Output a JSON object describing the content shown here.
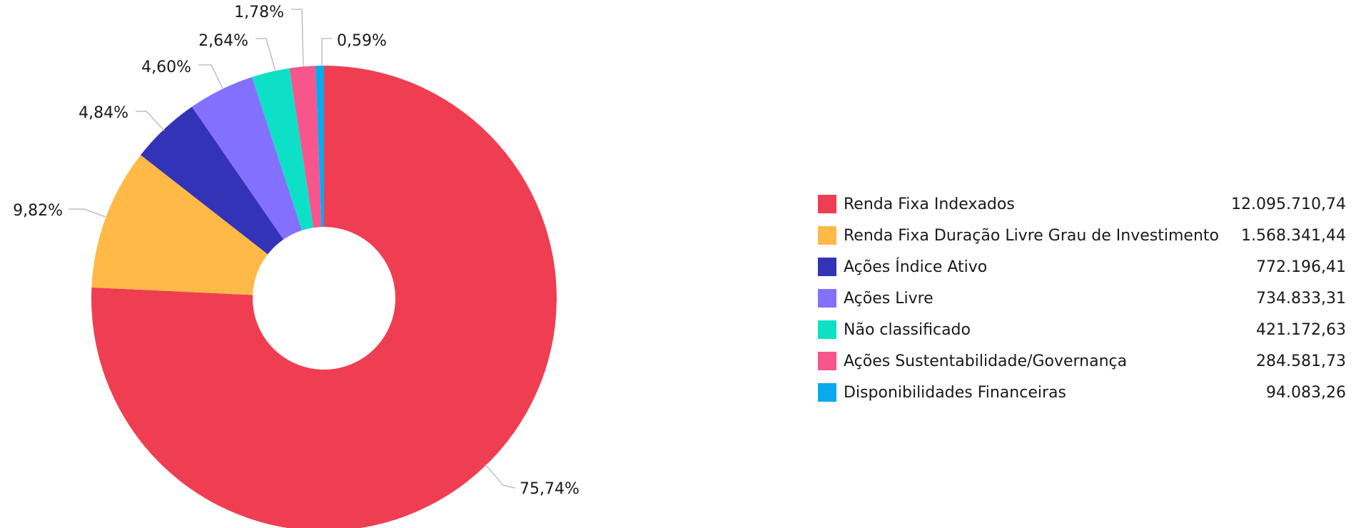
{
  "chart_data": {
    "type": "pie",
    "donut": true,
    "legend_position": "right",
    "series": [
      {
        "name": "Renda Fixa Indexados",
        "value": 12095710.74,
        "value_label": "12.095.710,74",
        "percent_label": "75,74%",
        "color": "#ef3e52"
      },
      {
        "name": "Renda Fixa Duração Livre Grau de Investimento",
        "value": 1568341.44,
        "value_label": "1.568.341,44",
        "percent_label": "9,82%",
        "color": "#ffb946"
      },
      {
        "name": "Ações Índice Ativo",
        "value": 772196.41,
        "value_label": "772.196,41",
        "percent_label": "4,84%",
        "color": "#3333b8"
      },
      {
        "name": "Ações Livre",
        "value": 734833.31,
        "value_label": "734.833,31",
        "percent_label": "4,60%",
        "color": "#8470ff"
      },
      {
        "name": "Não classificado",
        "value": 421172.63,
        "value_label": "421.172,63",
        "percent_label": "2,64%",
        "color": "#0ee0c8"
      },
      {
        "name": "Ações Sustentabilidade/Governança",
        "value": 284581.73,
        "value_label": "284.581,73",
        "percent_label": "1,78%",
        "color": "#f7558c"
      },
      {
        "name": "Disponibilidades Financeiras",
        "value": 94083.26,
        "value_label": "94.083,26",
        "percent_label": "0,59%",
        "color": "#0aa9ee"
      }
    ]
  }
}
